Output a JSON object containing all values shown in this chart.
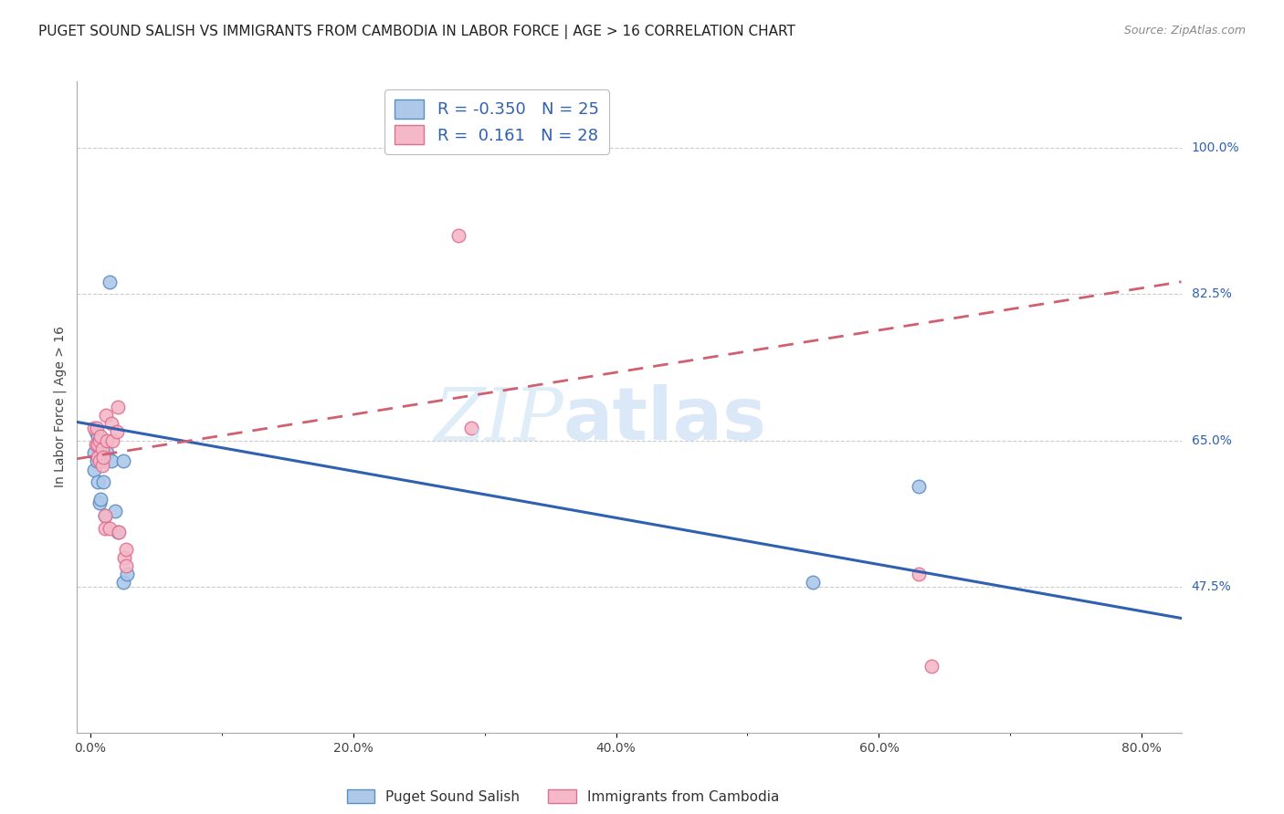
{
  "title": "PUGET SOUND SALISH VS IMMIGRANTS FROM CAMBODIA IN LABOR FORCE | AGE > 16 CORRELATION CHART",
  "source": "Source: ZipAtlas.com",
  "xlabel_labels": [
    "0.0%",
    "",
    "20.0%",
    "",
    "40.0%",
    "",
    "60.0%",
    "",
    "80.0%"
  ],
  "xlabel_vals": [
    0.0,
    0.1,
    0.2,
    0.3,
    0.4,
    0.5,
    0.6,
    0.7,
    0.8
  ],
  "ylabel_labels": [
    "100.0%",
    "82.5%",
    "65.0%",
    "47.5%"
  ],
  "ylabel_vals": [
    1.0,
    0.825,
    0.65,
    0.475
  ],
  "ymin": 0.3,
  "ymax": 1.08,
  "xmin": -0.01,
  "xmax": 0.83,
  "blue_label": "Puget Sound Salish",
  "pink_label": "Immigrants from Cambodia",
  "blue_R": -0.35,
  "blue_N": 25,
  "pink_R": 0.161,
  "pink_N": 28,
  "blue_color": "#adc8e8",
  "blue_edge": "#5b8ec4",
  "pink_color": "#f4b8c8",
  "pink_edge": "#e07090",
  "blue_line_color": "#3060b0",
  "pink_line_color": "#d06070",
  "blue_x": [
    0.003,
    0.003,
    0.004,
    0.005,
    0.005,
    0.006,
    0.006,
    0.007,
    0.007,
    0.008,
    0.008,
    0.009,
    0.01,
    0.01,
    0.011,
    0.013,
    0.015,
    0.016,
    0.019,
    0.021,
    0.025,
    0.025,
    0.028,
    0.55,
    0.63
  ],
  "blue_y": [
    0.635,
    0.615,
    0.66,
    0.645,
    0.625,
    0.655,
    0.6,
    0.64,
    0.575,
    0.65,
    0.58,
    0.64,
    0.625,
    0.6,
    0.56,
    0.635,
    0.84,
    0.625,
    0.565,
    0.54,
    0.625,
    0.48,
    0.49,
    0.48,
    0.595
  ],
  "pink_x": [
    0.003,
    0.004,
    0.005,
    0.006,
    0.006,
    0.007,
    0.007,
    0.008,
    0.009,
    0.009,
    0.01,
    0.011,
    0.011,
    0.012,
    0.013,
    0.015,
    0.016,
    0.017,
    0.02,
    0.021,
    0.022,
    0.026,
    0.027,
    0.027,
    0.28,
    0.29,
    0.63,
    0.64
  ],
  "pink_y": [
    0.665,
    0.645,
    0.665,
    0.645,
    0.63,
    0.65,
    0.625,
    0.655,
    0.64,
    0.62,
    0.63,
    0.56,
    0.545,
    0.68,
    0.65,
    0.545,
    0.67,
    0.65,
    0.66,
    0.69,
    0.54,
    0.51,
    0.52,
    0.5,
    0.895,
    0.665,
    0.49,
    0.38
  ],
  "blue_trend_x": [
    -0.01,
    0.83
  ],
  "blue_trend_y": [
    0.672,
    0.437
  ],
  "pink_trend_x": [
    -0.01,
    0.83
  ],
  "pink_trend_y": [
    0.628,
    0.84
  ],
  "grid_color": "#cccccc",
  "bg_color": "#ffffff",
  "title_fontsize": 11,
  "axis_label_fontsize": 10,
  "tick_fontsize": 10,
  "legend_fontsize": 13
}
